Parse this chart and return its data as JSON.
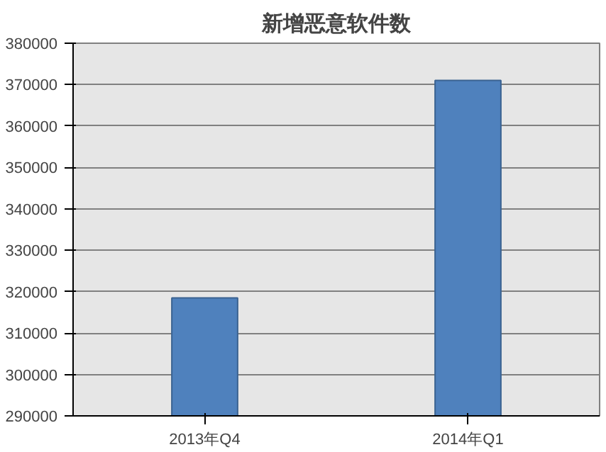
{
  "chart_data": {
    "type": "bar",
    "title": "新增恶意软件数",
    "categories": [
      "2013年Q4",
      "2014年Q1"
    ],
    "values": [
      318500,
      371000
    ],
    "color": "#4f81bd",
    "ylim": [
      290000,
      380000
    ],
    "yticks": [
      290000,
      300000,
      310000,
      320000,
      330000,
      340000,
      350000,
      360000,
      370000,
      380000
    ],
    "grid": "y"
  }
}
